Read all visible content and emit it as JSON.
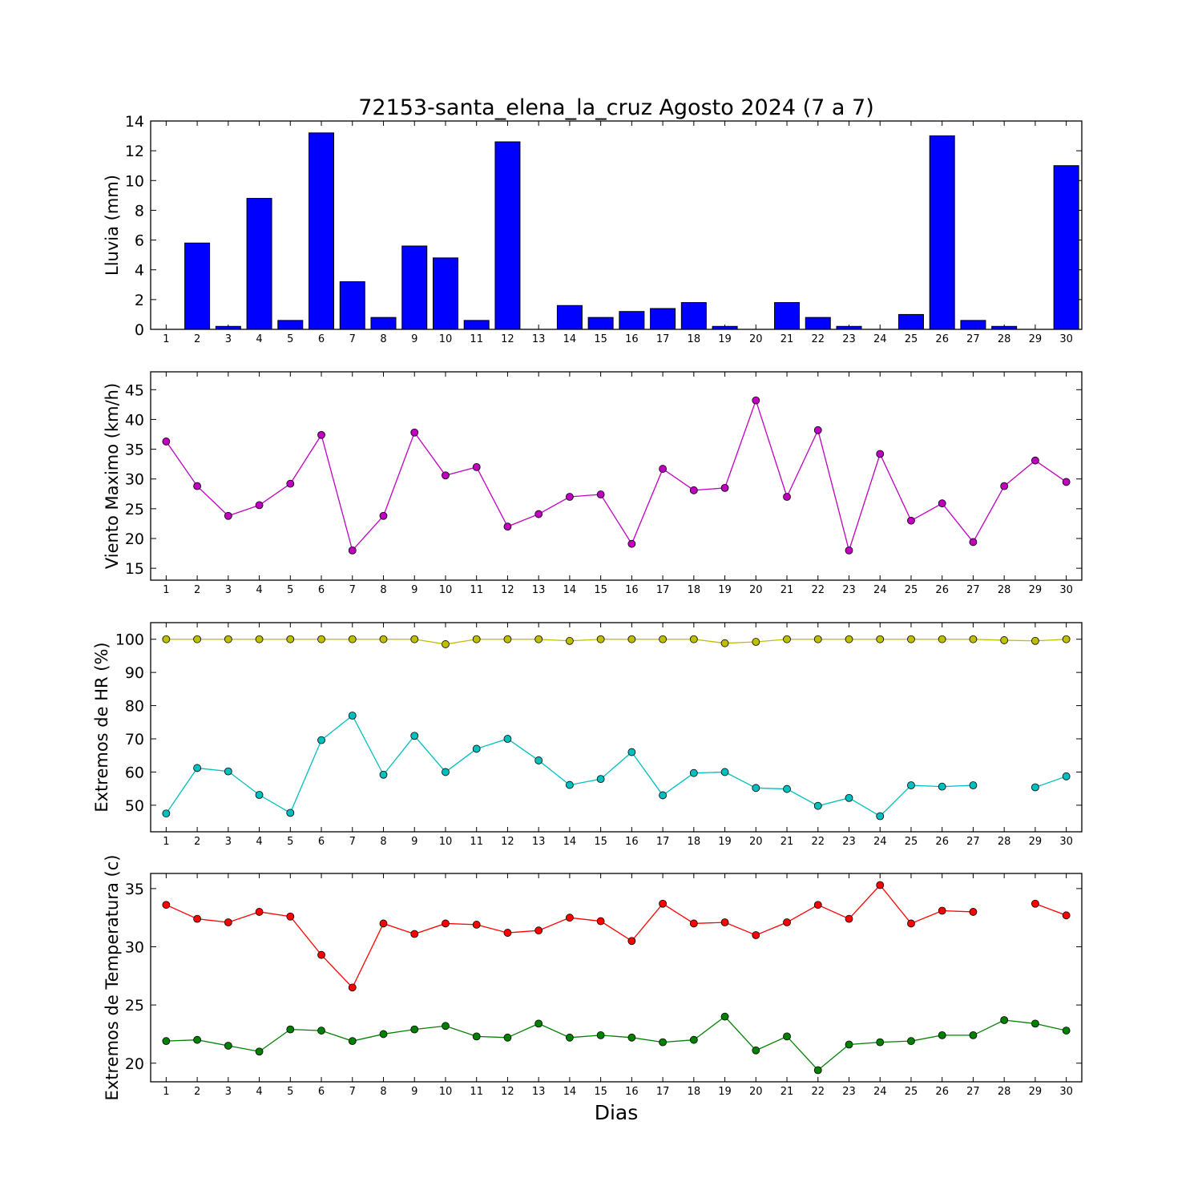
{
  "title": "72153-santa_elena_la_cruz Agosto 2024  (7 a 7)",
  "xlabel": "Dias",
  "chart_data": [
    {
      "type": "bar",
      "ylabel": "Lluvia (mm)",
      "ylim": [
        0,
        14
      ],
      "yticks": [
        0,
        2,
        4,
        6,
        8,
        10,
        12,
        14
      ],
      "x": [
        1,
        2,
        3,
        4,
        5,
        6,
        7,
        8,
        9,
        10,
        11,
        12,
        13,
        14,
        15,
        16,
        17,
        18,
        19,
        20,
        21,
        22,
        23,
        24,
        25,
        26,
        27,
        28,
        29,
        30
      ],
      "series": [
        {
          "color": "#0000ff",
          "values": [
            0,
            5.8,
            0.2,
            8.8,
            0.6,
            13.2,
            3.2,
            0.8,
            5.6,
            4.8,
            0.6,
            12.6,
            0,
            1.6,
            0.8,
            1.2,
            1.4,
            1.8,
            0.2,
            0,
            1.8,
            0.8,
            0.2,
            0,
            1.0,
            13.0,
            0.6,
            0.2,
            0,
            11.0
          ]
        }
      ]
    },
    {
      "type": "line",
      "ylabel": "Viento Maximo (km/h)",
      "ylim": [
        13,
        48
      ],
      "yticks": [
        15,
        20,
        25,
        30,
        35,
        40,
        45
      ],
      "x": [
        1,
        2,
        3,
        4,
        5,
        6,
        7,
        8,
        9,
        10,
        11,
        12,
        13,
        14,
        15,
        16,
        17,
        18,
        19,
        20,
        21,
        22,
        23,
        24,
        25,
        26,
        27,
        28,
        29,
        30
      ],
      "series": [
        {
          "color": "#bf00bf",
          "values": [
            36.3,
            28.8,
            23.8,
            25.6,
            29.2,
            37.4,
            18.0,
            23.8,
            37.8,
            30.6,
            32.0,
            22.0,
            24.1,
            27.0,
            27.4,
            19.1,
            31.7,
            28.1,
            28.5,
            43.2,
            27.0,
            38.2,
            18.0,
            34.2,
            23.0,
            25.9,
            19.4,
            28.8,
            33.1,
            29.5
          ]
        }
      ]
    },
    {
      "type": "line",
      "ylabel": "Extremos de HR (%)",
      "ylim": [
        42,
        105
      ],
      "yticks": [
        50,
        60,
        70,
        80,
        90,
        100
      ],
      "x": [
        1,
        2,
        3,
        4,
        5,
        6,
        7,
        8,
        9,
        10,
        11,
        12,
        13,
        14,
        15,
        16,
        17,
        18,
        19,
        20,
        21,
        22,
        23,
        24,
        25,
        26,
        27,
        28,
        29,
        30
      ],
      "series": [
        {
          "color": "#bfbf00",
          "values": [
            100,
            100,
            100,
            100,
            100,
            100,
            100,
            100,
            100,
            98.5,
            100,
            100,
            100,
            99.5,
            100,
            100,
            100,
            100,
            98.8,
            99.2,
            100,
            100,
            100,
            100,
            100,
            100,
            100,
            99.7,
            99.5,
            100
          ]
        },
        {
          "color": "#00bfbf",
          "values": [
            47.5,
            61.2,
            60.2,
            53.1,
            47.7,
            69.6,
            77.0,
            59.2,
            70.9,
            60.0,
            67.0,
            70.0,
            63.5,
            56.1,
            57.9,
            66.0,
            53.0,
            59.7,
            60.0,
            55.2,
            54.9,
            49.8,
            52.2,
            46.7,
            56.0,
            55.6,
            56.0,
            null,
            55.4,
            58.7
          ]
        }
      ]
    },
    {
      "type": "line",
      "ylabel": "Extremos de Temperatura (c)",
      "ylim": [
        18.4,
        36.3
      ],
      "yticks": [
        20,
        25,
        30,
        35
      ],
      "x": [
        1,
        2,
        3,
        4,
        5,
        6,
        7,
        8,
        9,
        10,
        11,
        12,
        13,
        14,
        15,
        16,
        17,
        18,
        19,
        20,
        21,
        22,
        23,
        24,
        25,
        26,
        27,
        28,
        29,
        30
      ],
      "series": [
        {
          "color": "#ff0000",
          "values": [
            33.6,
            32.4,
            32.1,
            33.0,
            32.6,
            29.3,
            26.5,
            32.0,
            31.1,
            32.0,
            31.9,
            31.2,
            31.4,
            32.5,
            32.2,
            30.5,
            33.7,
            32.0,
            32.1,
            31.0,
            32.1,
            33.6,
            32.4,
            35.3,
            32.0,
            33.1,
            33.0,
            null,
            33.7,
            32.7
          ]
        },
        {
          "color": "#008000",
          "values": [
            21.9,
            22.0,
            21.5,
            21.0,
            22.9,
            22.8,
            21.9,
            22.5,
            22.9,
            23.2,
            22.3,
            22.2,
            23.4,
            22.2,
            22.4,
            22.2,
            21.8,
            22.0,
            24.0,
            21.1,
            22.3,
            19.4,
            21.6,
            21.8,
            21.9,
            22.4,
            22.4,
            23.7,
            23.4,
            22.8
          ]
        }
      ]
    }
  ]
}
